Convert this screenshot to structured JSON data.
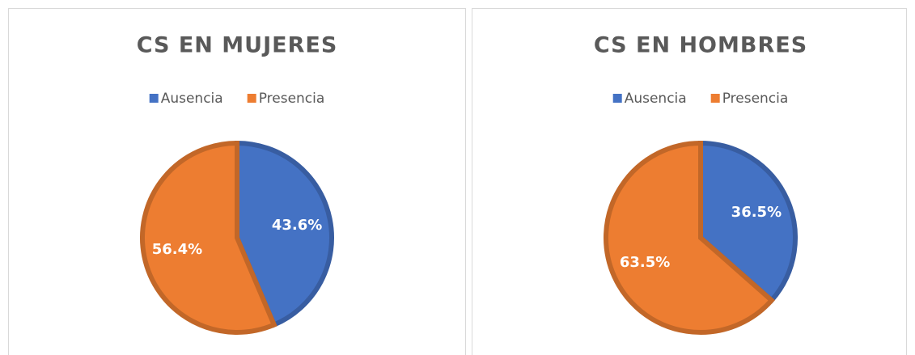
{
  "chart_data": [
    {
      "type": "pie",
      "title": "CS EN MUJERES",
      "categories": [
        "Ausencia",
        "Presencia"
      ],
      "values": [
        43.6,
        56.4
      ],
      "value_labels": [
        "43.6%",
        "56.4%"
      ],
      "colors": [
        "#4472c4",
        "#ed7d31"
      ]
    },
    {
      "type": "pie",
      "title": "CS EN HOMBRES",
      "categories": [
        "Ausencia",
        "Presencia"
      ],
      "values": [
        36.5,
        63.5
      ],
      "value_labels": [
        "36.5%",
        "63.5%"
      ],
      "colors": [
        "#4472c4",
        "#ed7d31"
      ]
    }
  ]
}
